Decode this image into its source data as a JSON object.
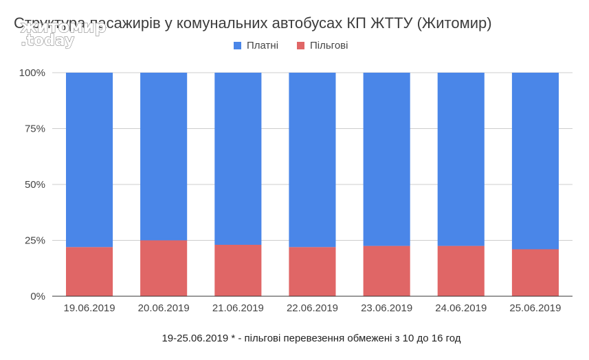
{
  "watermark": {
    "line1": "житомир",
    "line2": ".today"
  },
  "chart_data": {
    "type": "bar",
    "stacked": "percent",
    "title": "Структура пасажирів у комунальних автобусах КП ЖТТУ (Житомир)",
    "subtitle": "19-25.06.2019  * - пільгові перевезення обмежені з 10 до 16 год",
    "categories": [
      "19.06.2019",
      "20.06.2019",
      "21.06.2019",
      "22.06.2019",
      "23.06.2019",
      "24.06.2019",
      "25.06.2019"
    ],
    "series": [
      {
        "name": "Платні",
        "color": "#4a86e8",
        "values": [
          78,
          75,
          77,
          78,
          77.5,
          77.5,
          79
        ]
      },
      {
        "name": "Пільгові",
        "color": "#e06666",
        "values": [
          22,
          25,
          23,
          22,
          22.5,
          22.5,
          21
        ]
      }
    ],
    "yticks": [
      "0%",
      "25%",
      "50%",
      "75%",
      "100%"
    ],
    "ylim": [
      0,
      100
    ],
    "grid": true,
    "legend": "top-center"
  }
}
